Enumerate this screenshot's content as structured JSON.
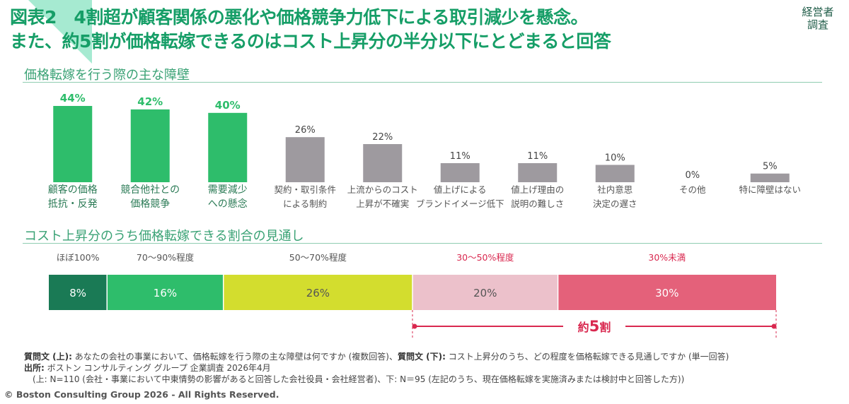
{
  "badge": {
    "line1": "経営者",
    "line2": "調査"
  },
  "title": {
    "line1": "図表2　4割超が顧客関係の悪化や価格競争力低下による取引減少を懸念。",
    "line2": "また、約5割が価格転嫁できるのはコスト上昇分の半分以下にとどまると回答"
  },
  "colors": {
    "green_bar": "#2ebd6b",
    "gray_bar": "#9e9a9f",
    "green_label": "#2ebd6b",
    "title_green": "#169e67",
    "dark_green": "#1a7a55",
    "mid_green": "#2ebd6b",
    "lime": "#d3dd2e",
    "light_pink": "#ecc1cb",
    "red": "#e4617a",
    "red_text": "#d9284f",
    "corner": "#9ee6cc"
  },
  "chart_data": [
    {
      "type": "bar",
      "title": "価格転嫁を行う際の主な障壁",
      "categories": [
        [
          "顧客の価格",
          "抵抗・反発"
        ],
        [
          "競合他社との",
          "価格競争"
        ],
        [
          "需要減少",
          "への懸念"
        ],
        [
          "契約・取引条件",
          "による制約"
        ],
        [
          "上流からのコスト",
          "上昇が不確実"
        ],
        [
          "値上げによる",
          "ブランドイメージ低下"
        ],
        [
          "値上げ理由の",
          "説明の難しさ"
        ],
        [
          "社内意思",
          "決定の遅さ"
        ],
        [
          "その他"
        ],
        [
          "特に障壁はない"
        ]
      ],
      "values": [
        44,
        42,
        40,
        26,
        22,
        11,
        11,
        10,
        0,
        5
      ],
      "value_labels": [
        "44%",
        "42%",
        "40%",
        "26%",
        "22%",
        "11%",
        "11%",
        "10%",
        "0%",
        "5%"
      ],
      "highlight": [
        true,
        true,
        true,
        false,
        false,
        false,
        false,
        false,
        false,
        false
      ],
      "ylim": [
        0,
        50
      ],
      "xlabel": "",
      "ylabel": ""
    },
    {
      "type": "bar",
      "subtype": "stacked-horizontal-100",
      "title": "コスト上昇分のうち価格転嫁できる割合の見通し",
      "categories": [
        "ほぼ100%",
        "70～90%程度",
        "50～70%程度",
        "30～50%程度",
        "30%未満"
      ],
      "values": [
        8,
        16,
        26,
        20,
        30
      ],
      "value_labels": [
        "8%",
        "16%",
        "26%",
        "20%",
        "30%"
      ],
      "category_colors": [
        "#1a7a55",
        "#2ebd6b",
        "#d3dd2e",
        "#ecc1cb",
        "#e4617a"
      ],
      "category_label_colors": [
        "#555555",
        "#555555",
        "#555555",
        "#d9284f",
        "#d9284f"
      ],
      "value_text_colors": [
        "#ffffff",
        "#ffffff",
        "#555555",
        "#555555",
        "#ffffff"
      ],
      "bracket": {
        "from_index": 3,
        "to_index": 4,
        "label_prefix": "約",
        "label_number": "5",
        "label_suffix": "割"
      }
    }
  ],
  "notes": {
    "q_label_upper": "質問文 (上):",
    "q_upper": " あなたの会社の事業において、価格転嫁を行う際の主な障壁は何ですか (複数回答)、",
    "q_label_lower": "質問文 (下):",
    "q_lower": " コスト上昇分のうち、どの程度を価格転嫁できる見通しですか (単一回答)",
    "source_label": "出所:",
    "source": " ボストン コンサルティング グループ 企業調査 2026年4月",
    "sample": "　(上: N=110 (会社・事業において中東情勢の影響があると回答した会社役員・会社経営者)、下: N＝95 (左記のうち、現在価格転嫁を実施済みまたは検討中と回答した方))"
  },
  "copyright": "© Boston Consulting Group 2026 - All Rights Reserved."
}
